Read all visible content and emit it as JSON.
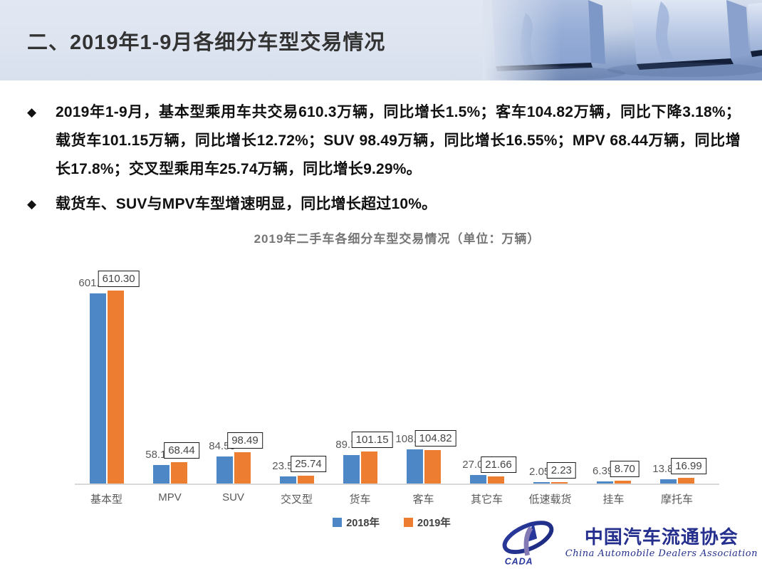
{
  "header": {
    "title": "二、2019年1-9月各细分车型交易情况"
  },
  "bullets": [
    {
      "marker": "◆",
      "text": "2019年1-9月，基本型乘用车共交易610.3万辆，同比增长1.5%；客车104.82万辆，同比下降3.18%；载货车101.15万辆，同比增长12.72%；SUV 98.49万辆，同比增长16.55%；MPV 68.44万辆，同比增长17.8%；交叉型乘用车25.74万辆，同比增长9.29%。"
    },
    {
      "marker": "◆",
      "text": "载货车、SUV与MPV车型增速明显，同比增长超过10%。"
    }
  ],
  "chart_data": {
    "type": "bar",
    "title": "2019年二手车各细分车型交易情况（单位：万辆）",
    "categories": [
      "基本型",
      "MPV",
      "SUV",
      "交叉型",
      "货车",
      "客车",
      "其它车",
      "低速载货",
      "挂车",
      "摩托车"
    ],
    "series": [
      {
        "name": "2018年",
        "color": "#4E87C5",
        "boxed_labels": false,
        "values": [
          601.28,
          58.1,
          84.5,
          23.56,
          89.74,
          108.26,
          27.01,
          2.05,
          6.39,
          13.84
        ]
      },
      {
        "name": "2019年",
        "color": "#ED7D31",
        "boxed_labels": true,
        "values": [
          610.3,
          68.44,
          98.49,
          25.74,
          101.15,
          104.82,
          21.66,
          2.23,
          8.7,
          16.99
        ]
      }
    ],
    "xlabel": "",
    "ylabel": "",
    "ylim": [
      0,
      650
    ],
    "grid": false,
    "data_labels": true,
    "legend_position": "bottom"
  },
  "footer_logo": {
    "acronym": "CADA",
    "name_cn": "中国汽车流通协会",
    "name_en": "China Automobile Dealers Association"
  },
  "colors": {
    "series_2018": "#4E87C5",
    "series_2019": "#ED7D31",
    "header_background": "#dde4f0",
    "axis_line": "#d9d9d9",
    "label_text": "#595959",
    "logo_blue": "#252f8e"
  }
}
